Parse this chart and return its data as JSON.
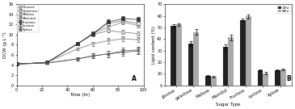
{
  "panel_A": {
    "title": "A",
    "xlabel": "Time (hr)",
    "ylabel": "DCW (g L⁻¹)",
    "xlim": [
      0,
      100
    ],
    "ylim": [
      0,
      16
    ],
    "yticks": [
      0,
      2,
      4,
      6,
      8,
      10,
      12,
      14,
      16
    ],
    "xticks": [
      0,
      20,
      40,
      60,
      80,
      100
    ],
    "series": [
      {
        "label": "Glucose",
        "x": [
          0,
          24,
          48,
          60,
          72,
          84,
          96
        ],
        "y": [
          4.2,
          4.5,
          8.2,
          10.2,
          12.2,
          12.8,
          12.2
        ],
        "yerr": [
          0.1,
          0.15,
          0.3,
          0.4,
          0.5,
          0.4,
          0.4
        ],
        "marker": "s",
        "fillstyle": "none",
        "color": "#777777",
        "linestyle": "-"
      },
      {
        "label": "Galactose",
        "x": [
          0,
          24,
          48,
          60,
          72,
          84,
          96
        ],
        "y": [
          4.2,
          4.5,
          8.2,
          10.0,
          10.8,
          10.5,
          10.2
        ],
        "yerr": [
          0.1,
          0.15,
          0.3,
          0.3,
          0.4,
          0.4,
          0.4
        ],
        "marker": "o",
        "fillstyle": "none",
        "color": "#777777",
        "linestyle": "-"
      },
      {
        "label": "Maltose",
        "x": [
          0,
          24,
          48,
          60,
          72,
          84,
          96
        ],
        "y": [
          4.2,
          4.5,
          8.2,
          10.2,
          11.5,
          12.5,
          11.8
        ],
        "yerr": [
          0.1,
          0.15,
          0.3,
          0.3,
          0.4,
          0.5,
          0.4
        ],
        "marker": "^",
        "fillstyle": "none",
        "color": "#777777",
        "linestyle": "-"
      },
      {
        "label": "Mannitol",
        "x": [
          0,
          24,
          48,
          60,
          72,
          84,
          96
        ],
        "y": [
          4.2,
          4.5,
          7.2,
          8.2,
          8.8,
          9.2,
          9.0
        ],
        "yerr": [
          0.1,
          0.15,
          0.3,
          0.4,
          0.5,
          0.5,
          0.5
        ],
        "marker": "v",
        "fillstyle": "none",
        "color": "#777777",
        "linestyle": "-"
      },
      {
        "label": "Fructose",
        "x": [
          0,
          24,
          48,
          60,
          72,
          84,
          96
        ],
        "y": [
          4.2,
          4.5,
          8.2,
          10.2,
          12.5,
          13.2,
          13.0
        ],
        "yerr": [
          0.1,
          0.15,
          0.3,
          0.4,
          0.5,
          0.4,
          0.5
        ],
        "marker": "s",
        "fillstyle": "full",
        "color": "#333333",
        "linestyle": "-"
      },
      {
        "label": "Lactose",
        "x": [
          0,
          24,
          48,
          60,
          72,
          84,
          96
        ],
        "y": [
          4.2,
          4.4,
          5.2,
          5.8,
          6.2,
          6.5,
          6.8
        ],
        "yerr": [
          0.1,
          0.15,
          0.3,
          0.5,
          0.6,
          0.7,
          0.6
        ],
        "marker": "+",
        "fillstyle": "full",
        "color": "#555555",
        "linestyle": "-"
      },
      {
        "label": "Xylose",
        "x": [
          0,
          24,
          48,
          60,
          72,
          84,
          96
        ],
        "y": [
          4.2,
          4.4,
          5.2,
          5.8,
          6.2,
          6.8,
          7.0
        ],
        "yerr": [
          0.1,
          0.15,
          0.3,
          0.5,
          0.6,
          0.7,
          0.6
        ],
        "marker": "x",
        "fillstyle": "full",
        "color": "#555555",
        "linestyle": "-"
      }
    ]
  },
  "panel_B": {
    "title": "B",
    "xlabel": "Sugar Type",
    "ylabel": "Lipid content (%)",
    "ylim": [
      0,
      70
    ],
    "yticks": [
      0,
      10,
      20,
      30,
      40,
      50,
      60,
      70
    ],
    "categories": [
      "glucose",
      "galactose",
      "Maltose",
      "Mannitol",
      "Fructose",
      "Lactose",
      "Xylose"
    ],
    "bar_width": 0.32,
    "series": [
      {
        "label": "72hr",
        "values": [
          51.5,
          36.0,
          8.0,
          33.0,
          56.5,
          13.0,
          13.0
        ],
        "errors": [
          1.2,
          2.0,
          0.8,
          2.0,
          1.2,
          0.8,
          0.8
        ],
        "color": "#222222"
      },
      {
        "label": "96hr",
        "values": [
          52.5,
          46.0,
          7.5,
          41.5,
          59.5,
          10.5,
          13.5
        ],
        "errors": [
          1.2,
          2.5,
          0.8,
          2.5,
          1.8,
          0.8,
          0.8
        ],
        "color": "#aaaaaa"
      }
    ]
  }
}
